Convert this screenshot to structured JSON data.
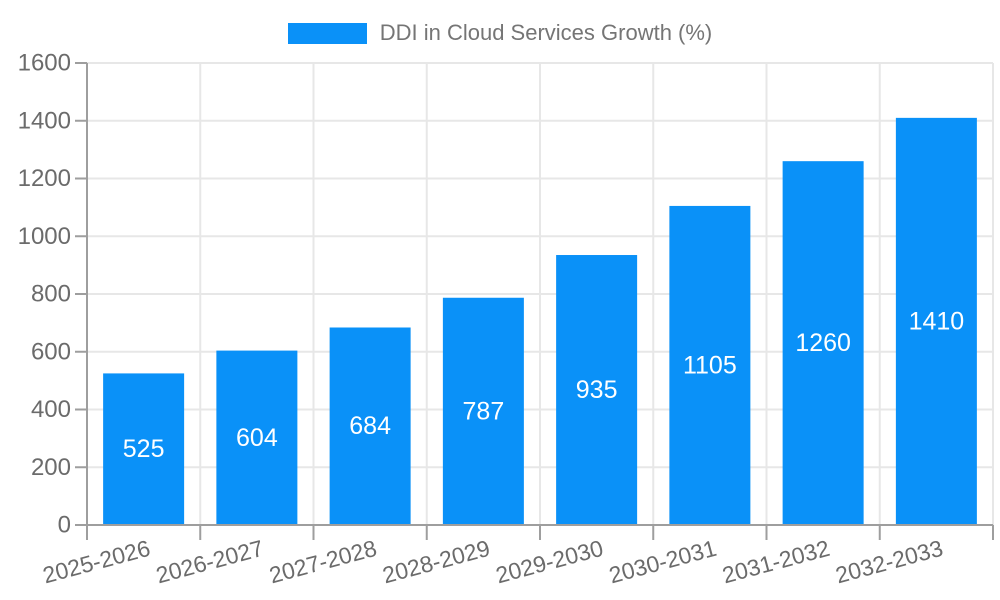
{
  "legend": {
    "label": "DDI in Cloud Services Growth (%)"
  },
  "chart_data": {
    "type": "bar",
    "title": "DDI in Cloud Services Growth (%)",
    "categories": [
      "2025-2026",
      "2026-2027",
      "2027-2028",
      "2028-2029",
      "2029-2030",
      "2030-2031",
      "2031-2032",
      "2032-2033"
    ],
    "series": [
      {
        "name": "DDI in Cloud Services Growth (%)",
        "values": [
          525,
          604,
          684,
          787,
          935,
          1105,
          1260,
          1410
        ]
      }
    ],
    "xlabel": "",
    "ylabel": "",
    "ylim": [
      0,
      1600
    ],
    "yticks": [
      0,
      200,
      400,
      600,
      800,
      1000,
      1200,
      1400,
      1600
    ],
    "grid": true,
    "legend_position": "top-center",
    "x_label_rotation_deg": 15,
    "bar_value_labels": "inside-centered",
    "colors": {
      "bar": "#0A91F8",
      "gridline": "#E7E7E7",
      "axis": "#9E9E9E",
      "tick_label": "#6B6B6B",
      "legend_text": "#757575",
      "bar_label": "#FFFFFF",
      "background": "#FFFFFF"
    }
  }
}
